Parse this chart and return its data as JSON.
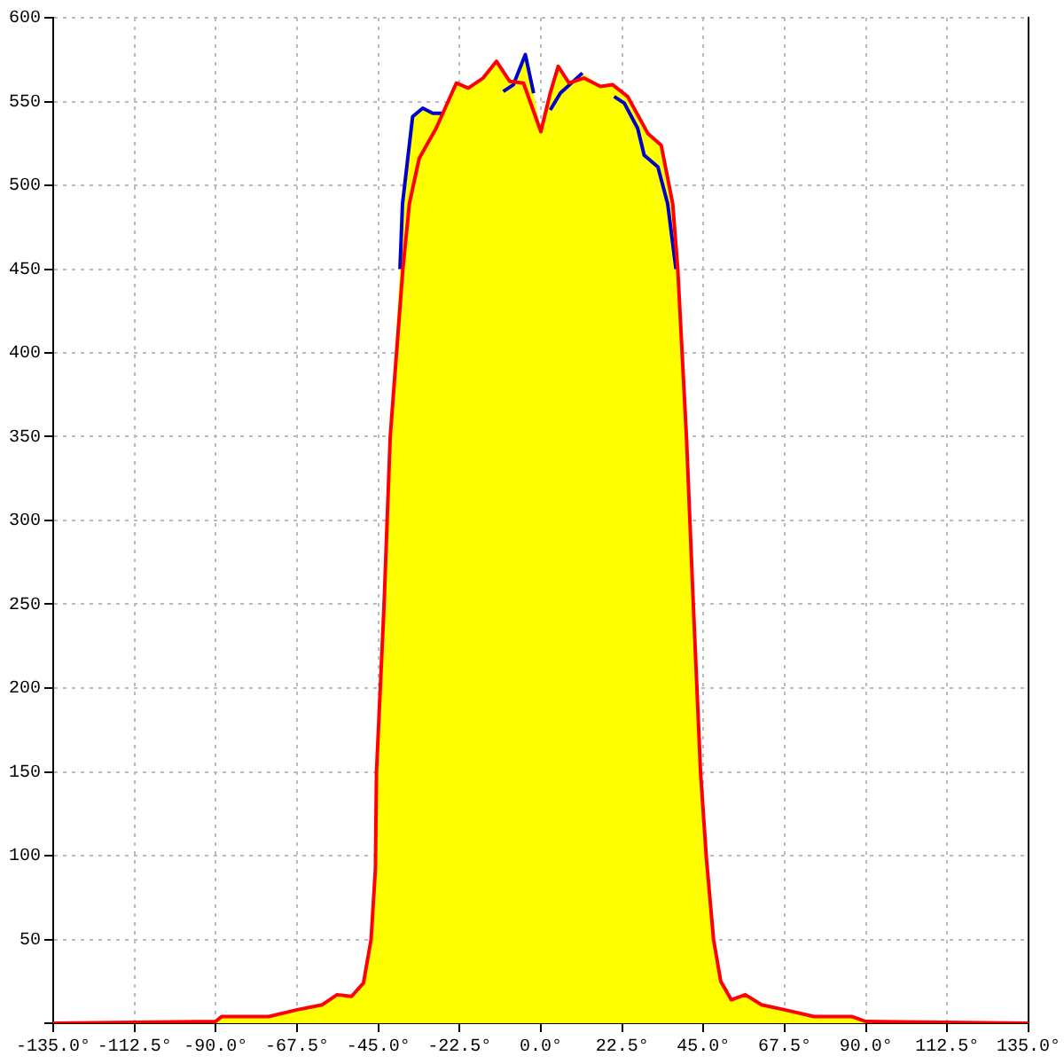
{
  "chart_data": {
    "type": "line",
    "xlim": [
      -135,
      135
    ],
    "ylim": [
      0,
      600
    ],
    "xticks": [
      {
        "value": -135,
        "label": "-135.0°"
      },
      {
        "value": -112.5,
        "label": "-112.5°"
      },
      {
        "value": -90,
        "label": "-90.0°"
      },
      {
        "value": -67.5,
        "label": "-67.5°"
      },
      {
        "value": -45,
        "label": "-45.0°"
      },
      {
        "value": -22.5,
        "label": "-22.5°"
      },
      {
        "value": 0,
        "label": "0.0°"
      },
      {
        "value": 22.5,
        "label": "22.5°"
      },
      {
        "value": 45,
        "label": "45.0°"
      },
      {
        "value": 67.5,
        "label": "67.5°"
      },
      {
        "value": 90,
        "label": "90.0°"
      },
      {
        "value": 112.5,
        "label": "112.5°"
      },
      {
        "value": 135,
        "label": "135.0°"
      }
    ],
    "yticks": [
      {
        "value": 0,
        "label": null
      },
      50,
      100,
      150,
      200,
      250,
      300,
      350,
      400,
      450,
      500,
      550,
      600
    ],
    "grid": true,
    "legend": false,
    "marker": "none",
    "line_style": "solid",
    "series": [
      {
        "type": "area",
        "color": "#ffff00",
        "x": [
          -135,
          -90,
          -88.4,
          -75.3,
          -67.5,
          -60.5,
          -56.4,
          -52.4,
          -49.1,
          -47,
          -45.8,
          -45.5,
          -43.4,
          -41.7,
          -39,
          -38.2,
          -35.5,
          -32.7,
          -29.9,
          -27.5,
          -23.4,
          -20.1,
          -16,
          -12.3,
          -8.6,
          -6.5,
          -4.3,
          -2,
          0,
          2.6,
          4.8,
          7.8,
          11.5,
          16.5,
          19.9,
          24,
          29.6,
          33.3,
          36.5,
          37.9,
          40.3,
          42.2,
          44.2,
          45.8,
          47.8,
          49.8,
          52.7,
          56.6,
          61.1,
          67.5,
          75.6,
          86,
          90,
          135
        ],
        "values": [
          0,
          1,
          4,
          4,
          8,
          11,
          18,
          16,
          24,
          50,
          92,
          150,
          250,
          350,
          450,
          500,
          541,
          546,
          543,
          543,
          561,
          558,
          564,
          574,
          562,
          562,
          578,
          555,
          532,
          555,
          571,
          561,
          567,
          559,
          560,
          553,
          531,
          524,
          489,
          450,
          350,
          250,
          150,
          99,
          50,
          25,
          14,
          18,
          11,
          8,
          4,
          4,
          1,
          0
        ]
      },
      {
        "color": "#ff0000",
        "x": [
          -135,
          -90,
          -88.4,
          -75.3,
          -67.5,
          -60.5,
          -56.4,
          -52.4,
          -49.1,
          -47,
          -45.8,
          -45.5,
          -43.4,
          -41.7,
          -38.2,
          -36.4,
          -33.7,
          -29,
          -23.4,
          -20.1,
          -16,
          -12.3,
          -8.6,
          -4.8,
          0,
          2.6,
          4.8,
          7.8,
          11.9,
          16.5,
          19.9,
          24,
          29.6,
          33.3,
          36.5,
          37.9,
          40.3,
          42.2,
          44.2,
          45.8,
          47.8,
          49.8,
          52.7,
          56.6,
          61.1,
          67.5,
          75.6,
          86,
          90,
          135
        ],
        "values": [
          0,
          1,
          4,
          4,
          8,
          11,
          17,
          16,
          24,
          50,
          92,
          150,
          250,
          350,
          450,
          489,
          516,
          534,
          561,
          558,
          564,
          574,
          562,
          561,
          532,
          555,
          571,
          561,
          564,
          559,
          560,
          553,
          531,
          524,
          489,
          450,
          350,
          250,
          150,
          99,
          50,
          25,
          14,
          17,
          11,
          8,
          4,
          4,
          1,
          0
        ]
      },
      {
        "color": "#0000cc",
        "x": [
          -39,
          -38.3,
          -35.5,
          -32.7,
          -29.9,
          -27.5,
          -23.4,
          -16,
          -10.4,
          -7.6,
          -4.3,
          -2,
          0,
          2.6,
          5.4,
          11.5,
          16.5,
          20.3,
          23.1,
          26.8,
          28.6,
          32.4,
          35.1,
          37.4
        ],
        "values": [
          450,
          489,
          541,
          546,
          543,
          543,
          null,
          null,
          556,
          560,
          578,
          555,
          null,
          545,
          555,
          567,
          null,
          553,
          549,
          534,
          518,
          511,
          489,
          450
        ]
      }
    ]
  }
}
